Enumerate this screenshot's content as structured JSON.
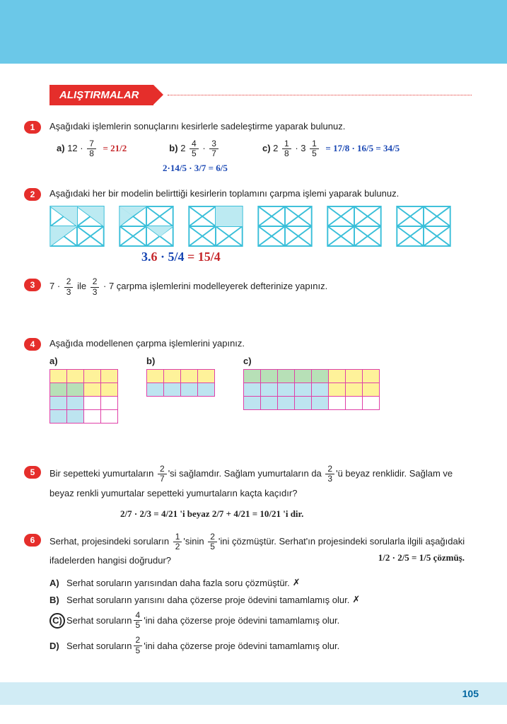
{
  "header": {
    "title": "ALIŞTIRMALAR"
  },
  "page_number": "105",
  "q1": {
    "text": "Aşağıdaki işlemlerin sonuçlarını kesirlerle sadeleştirme yaparak bulunuz.",
    "a_label": "a)",
    "a_expr_pre": "12 · ",
    "a_frac_n": "7",
    "a_frac_d": "8",
    "b_label": "b)",
    "b_expr_pre": "2 ",
    "b_frac1_n": "4",
    "b_frac1_d": "5",
    "b_mid": " · ",
    "b_frac2_n": "3",
    "b_frac2_d": "7",
    "c_label": "c)",
    "c_expr_pre": "2 ",
    "c_frac1_n": "1",
    "c_frac1_d": "8",
    "c_mid": " · 3 ",
    "c_frac2_n": "1",
    "c_frac2_d": "5",
    "hand_a": "= 21/2",
    "hand_b": "2·14/5 · 3/7 = 6/5",
    "hand_c": "= 17/8 · 16/5 = 34/5"
  },
  "q2": {
    "text": "Aşağıdaki her bir modelin belirttiği kesirlerin toplamını çarpma işlemi yaparak bulunuz.",
    "square_stroke": "#3abfd9",
    "hand": "3.6 · 5/4 = 15/4"
  },
  "q3": {
    "pre": "7 · ",
    "f1n": "2",
    "f1d": "3",
    "mid": " ile ",
    "f2n": "2",
    "f2d": "3",
    "post": " · 7  çarpma işlemlerini modelleyerek defterinize yapınız."
  },
  "q4": {
    "text": "Aşağıda modellenen çarpma işlemlerini yapınız.",
    "a_label": "a)",
    "b_label": "b)",
    "c_label": "c)",
    "grid_a": {
      "cols": 4,
      "rows": 4,
      "fills": [
        [
          "cy",
          "cy",
          "cy",
          "cy"
        ],
        [
          "cg",
          "cg",
          "cy",
          "cy"
        ],
        [
          "cb",
          "cb",
          "",
          ""
        ],
        [
          "cb",
          "cb",
          "",
          ""
        ]
      ]
    },
    "grid_b": {
      "cols": 4,
      "rows": 2,
      "fills": [
        [
          "cy",
          "cy",
          "cy",
          "cy"
        ],
        [
          "cb",
          "cb",
          "cb",
          "cb"
        ]
      ]
    },
    "grid_c": {
      "cols": 8,
      "rows": 3,
      "fills": [
        [
          "cg",
          "cg",
          "cg",
          "cg",
          "cg",
          "cy",
          "cy",
          "cy"
        ],
        [
          "cb",
          "cb",
          "cb",
          "cb",
          "cb",
          "cy",
          "cy",
          "cy"
        ],
        [
          "cb",
          "cb",
          "cb",
          "cb",
          "cb",
          "",
          "",
          ""
        ]
      ]
    }
  },
  "q5": {
    "t1": "Bir sepetteki yumurtaların ",
    "f1n": "2",
    "f1d": "7",
    "t2": "'si sağlamdır. Sağlam yumurtaların da ",
    "f2n": "2",
    "f2d": "3",
    "t3": "'ü beyaz renklidir. Sağlam ve beyaz renkli yumurtalar sepetteki yumurtaların kaçta kaçıdır?",
    "hand": "2/7 · 2/3 = 4/21 'i beyaz    2/7 + 4/21 = 10/21 'i dir."
  },
  "q6": {
    "t1": "Serhat, projesindeki soruların ",
    "f1n": "1",
    "f1d": "2",
    "t2": "'sinin ",
    "f2n": "2",
    "f2d": "5",
    "t3": "'ini çözmüştür. Serhat'ın projesindeki sorularla ilgili aşağıdaki ifadelerden hangisi doğrudur?",
    "hand": "1/2 · 2/5 = 1/5  çözmüş.",
    "A_lbl": "A)",
    "A": "Serhat soruların yarısından daha fazla soru çözmüştür.",
    "B_lbl": "B)",
    "B": "Serhat soruların yarısını daha çözerse proje ödevini tamamlamış olur.",
    "C_lbl": "C)",
    "C_pre": "Serhat soruların ",
    "C_fn": "4",
    "C_fd": "5",
    "C_post": "'ini daha çözerse proje ödevini tamamlamış olur.",
    "D_lbl": "D)",
    "D_pre": "Serhat soruların ",
    "D_fn": "2",
    "D_fd": "5",
    "D_post": "'ini daha çözerse proje ödevini tamamlamış olur.",
    "xmark": "✗"
  }
}
